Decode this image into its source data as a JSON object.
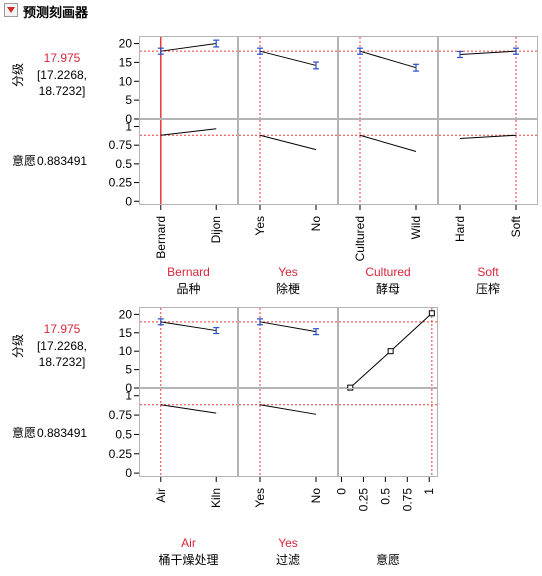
{
  "window": {
    "title": "预测刻画器"
  },
  "colors": {
    "reference": "#e0403e",
    "current": "#e8383d",
    "curve": "#000000",
    "errbar": "#2a4fc8",
    "frame": "#b4b4b4"
  },
  "responses": [
    {
      "name": "分级",
      "value": "17.975",
      "interval_line1": "[17.2268,",
      "interval_line2": "18.7232]"
    },
    {
      "name": "意愿",
      "value": "0.883491"
    }
  ],
  "chart_data": {
    "type": "line",
    "title": "",
    "axes": {
      "rating": {
        "ylim": [
          0,
          22
        ],
        "ticks": [
          "0",
          "5",
          "10",
          "15",
          "20"
        ],
        "reference": 17.975
      },
      "willingness": {
        "ylim": [
          -0.05,
          1.1
        ],
        "ticks": [
          "0",
          "0.25",
          "0.5",
          "0.75",
          "1"
        ],
        "reference": 0.883491
      }
    },
    "factors": [
      {
        "name": "品种",
        "current": "Bernard",
        "categories": [
          "Bernard",
          "Dijon"
        ],
        "rating": [
          17.975,
          20.0
        ],
        "rating_err": [
          0.8,
          0.9
        ],
        "willingness": [
          0.883,
          0.97
        ],
        "current_solid": true
      },
      {
        "name": "除梗",
        "current": "Yes",
        "categories": [
          "Yes",
          "No"
        ],
        "rating": [
          17.975,
          14.2
        ],
        "rating_err": [
          0.8,
          0.9
        ],
        "willingness": [
          0.883,
          0.69
        ]
      },
      {
        "name": "酵母",
        "current": "Cultured",
        "categories": [
          "Cultured",
          "Wild"
        ],
        "rating": [
          17.975,
          13.6
        ],
        "rating_err": [
          0.8,
          0.9
        ],
        "willingness": [
          0.883,
          0.665
        ]
      },
      {
        "name": "压榨",
        "current": "Soft",
        "categories": [
          "Hard",
          "Soft"
        ],
        "rating": [
          17.1,
          17.975
        ],
        "rating_err": [
          0.8,
          0.8
        ],
        "willingness": [
          0.84,
          0.883
        ]
      },
      {
        "name": "桶干燥处理",
        "current": "Air",
        "categories": [
          "Air",
          "Kiln"
        ],
        "rating": [
          17.975,
          15.6
        ],
        "rating_err": [
          0.8,
          0.8
        ],
        "willingness": [
          0.883,
          0.775
        ]
      },
      {
        "name": "过滤",
        "current": "Yes",
        "categories": [
          "Yes",
          "No"
        ],
        "rating": [
          17.975,
          15.3
        ],
        "rating_err": [
          0.8,
          0.8
        ],
        "willingness": [
          0.883,
          0.76
        ]
      }
    ],
    "continuous_factor": {
      "name": "意愿",
      "xlim": [
        -0.04,
        1.1
      ],
      "ticks": [
        "0",
        "0.25",
        "0.5",
        "0.75",
        "1"
      ],
      "x": [
        0.1,
        0.56,
        1.03
      ],
      "y": [
        0.1,
        10.0,
        20.3
      ],
      "current": 1.03
    }
  }
}
